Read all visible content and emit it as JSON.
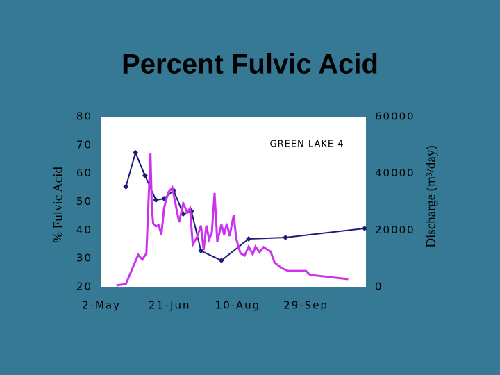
{
  "chart_data": {
    "type": "line",
    "title": "Percent Fulvic Acid",
    "annotation": "GREEN LAKE 4",
    "ylabel": "% Fulvic Acid",
    "y2label": "Discharge (m³/day)",
    "xlim": [
      122,
      316
    ],
    "xticks": [
      {
        "value": 122,
        "label": "2-May"
      },
      {
        "value": 172,
        "label": "21-Jun"
      },
      {
        "value": 222,
        "label": "10-Aug"
      },
      {
        "value": 272,
        "label": "29-Sep"
      }
    ],
    "ylim": [
      20,
      80
    ],
    "yticks": [
      20,
      30,
      40,
      50,
      60,
      70,
      80
    ],
    "y2lim": [
      0,
      60000
    ],
    "y2ticks": [
      0,
      20000,
      40000,
      60000
    ],
    "series": [
      {
        "name": "% Fulvic Acid",
        "color": "#1c1c7a",
        "markers": true,
        "x": [
          140,
          147,
          154,
          162,
          168,
          175,
          182,
          188,
          195,
          210,
          230,
          257,
          315
        ],
        "values": [
          55.3,
          67.3,
          59.2,
          50.6,
          51.1,
          54.0,
          45.7,
          46.7,
          32.7,
          29.3,
          36.9,
          37.4,
          40.6
        ]
      },
      {
        "name": "Discharge",
        "color": "#cc33ee",
        "markers": false,
        "axis": "y2",
        "x": [
          133,
          140,
          144,
          149,
          152,
          155,
          158,
          159,
          160,
          162,
          164,
          166,
          168,
          171,
          174,
          176,
          179,
          182,
          185,
          187,
          189,
          192,
          195,
          197,
          199,
          201,
          203,
          205,
          207,
          210,
          212,
          214,
          216,
          219,
          221,
          224,
          227,
          230,
          233,
          235,
          238,
          241,
          244,
          246,
          249,
          254,
          259,
          272,
          275,
          303
        ],
        "values": [
          500,
          1000,
          5600,
          11300,
          9600,
          11800,
          47000,
          27700,
          22300,
          21300,
          21800,
          18400,
          27900,
          33300,
          35000,
          30100,
          22800,
          29400,
          26200,
          27700,
          14900,
          17400,
          21600,
          13000,
          21600,
          16700,
          19100,
          33100,
          15900,
          22000,
          18400,
          22300,
          17900,
          25200,
          16700,
          11800,
          11000,
          14200,
          11500,
          14200,
          12200,
          14000,
          13000,
          12500,
          8600,
          6600,
          5600,
          5600,
          4200,
          2700
        ]
      }
    ]
  }
}
